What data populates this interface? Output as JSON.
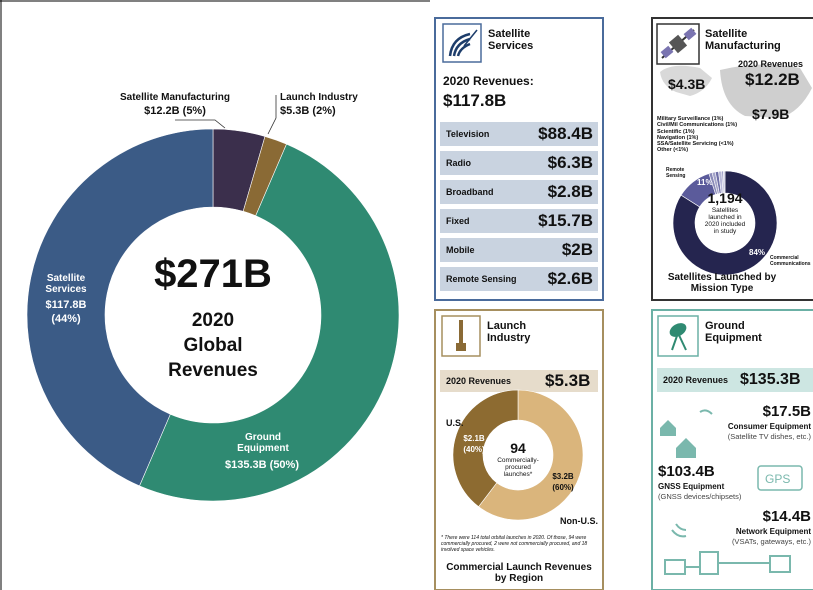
{
  "chart_data": [
    {
      "type": "donut",
      "categories": [
        "Satellite Manufacturing",
        "Launch Industry",
        "Ground Equipment",
        "Satellite Services"
      ],
      "values": [
        12.2,
        5.3,
        135.3,
        117.8
      ],
      "value_labels": [
        "$12.2B",
        "$5.3B",
        "$135.3B",
        "$117.8B"
      ],
      "percents": [
        5,
        2,
        50,
        44
      ],
      "percent_labels": [
        "(5%)",
        "(2%)",
        "(50%)",
        "(44%)"
      ],
      "colors": [
        "#3b2f4c",
        "#8a6a35",
        "#2f8a72",
        "#3b5b86"
      ],
      "center_label": "$271B",
      "center_caption": [
        "2020",
        "Global",
        "Revenues"
      ]
    },
    {
      "type": "donut",
      "categories": [
        "Non-U.S.",
        "U.S."
      ],
      "values": [
        3.2,
        2.1
      ],
      "value_labels": [
        "$3.2B",
        "$2.1B"
      ],
      "percents": [
        60,
        40
      ],
      "percent_labels": [
        "(60%)",
        "(40%)"
      ],
      "colors": [
        "#dab57c",
        "#8d6b31"
      ],
      "center_label": "94",
      "center_caption": "Commercially-procured launches*"
    },
    {
      "type": "donut",
      "categories": [
        "Commercial Communications",
        "Remote Sensing",
        "Military Surveillance",
        "Civil/Mil Communications",
        "Scientific",
        "Navigation",
        "SSA/Satellite Servicing",
        "Other"
      ],
      "values": [
        84,
        11,
        1,
        1,
        1,
        1,
        0.5,
        0.5
      ],
      "value_labels": [
        "84%",
        "11%",
        "(1%)",
        "(1%)",
        "(1%)",
        "(1%)",
        "(<1%)",
        "(<1%)"
      ],
      "colors": [
        "#25254f",
        "#5b5b9b",
        "#8a8ab8",
        "#a3a3c8",
        "#7070a8",
        "#b8b8d8",
        "#9494c0",
        "#c8c8e0"
      ],
      "center_label": "1,194",
      "center_caption": "Satellites launched in 2020 included in study"
    }
  ],
  "services": {
    "title": "Satellite Services",
    "revenue_label": "2020 Revenues:",
    "revenue": "$117.8B",
    "rows": [
      [
        "Television",
        "$88.4B"
      ],
      [
        "Radio",
        "$6.3B"
      ],
      [
        "Broadband",
        "$2.8B"
      ],
      [
        "Fixed",
        "$15.7B"
      ],
      [
        "Mobile",
        "$2B"
      ],
      [
        "Remote Sensing",
        "$2.6B"
      ]
    ]
  },
  "manufacturing": {
    "title": "Satellite Manufacturing",
    "revenue_label": "2020 Revenues",
    "revenue": "$12.2B",
    "map_values": [
      "$4.3B",
      "$7.9B"
    ],
    "caption": "Satellites Launched by Mission Type"
  },
  "launch": {
    "title": "Launch Industry",
    "revenue_label": "2020 Revenues",
    "revenue": "$5.3B",
    "footnote": "* There were 114 total orbital launches in 2020. Of those, 94 were commercially procured, 2 were not commercially procured, and 18 involved space vehicles.",
    "caption": "Commercial Launch Revenues by Region"
  },
  "ground": {
    "title": "Ground Equipment",
    "revenue_label": "2020 Revenues",
    "revenue": "$135.3B",
    "gps": "GPS",
    "items": [
      {
        "value": "$17.5B",
        "name": "Consumer Equipment",
        "note": "(Satellite TV dishes, etc.)"
      },
      {
        "value": "$103.4B",
        "name": "GNSS Equipment",
        "note": "(GNSS devices/chipsets)"
      },
      {
        "value": "$14.4B",
        "name": "Network Equipment",
        "note": "(VSATs, gateways, etc.)"
      }
    ]
  }
}
